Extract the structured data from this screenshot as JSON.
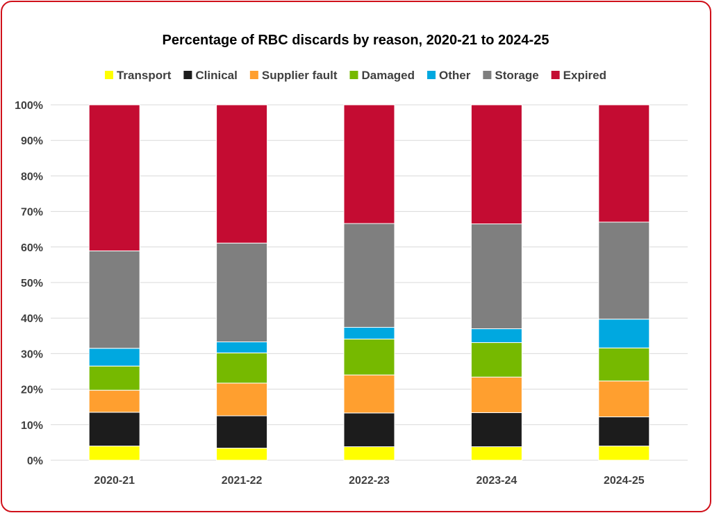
{
  "chart_data": {
    "type": "bar",
    "stacked": true,
    "title": "Percentage of RBC discards by reason, 2020-21 to 2024-25",
    "xlabel": "",
    "ylabel": "",
    "ylim": [
      0,
      100
    ],
    "y_ticks": [
      "0%",
      "10%",
      "20%",
      "30%",
      "40%",
      "50%",
      "60%",
      "70%",
      "80%",
      "90%",
      "100%"
    ],
    "categories": [
      "2020-21",
      "2021-22",
      "2022-23",
      "2023-24",
      "2024-25"
    ],
    "legend_position": "top",
    "grid": true,
    "series": [
      {
        "name": "Transport",
        "color": "#ffff00",
        "values": [
          4.0,
          3.4,
          3.8,
          3.8,
          4.0
        ]
      },
      {
        "name": "Clinical",
        "color": "#1c1c1c",
        "values": [
          9.5,
          9.1,
          9.5,
          9.6,
          8.2
        ]
      },
      {
        "name": "Supplier fault",
        "color": "#ff9f2f",
        "values": [
          6.2,
          9.2,
          10.7,
          10.0,
          10.1
        ]
      },
      {
        "name": "Damaged",
        "color": "#76b900",
        "values": [
          6.8,
          8.5,
          10.1,
          9.7,
          9.3
        ]
      },
      {
        "name": "Other",
        "color": "#00a8e0",
        "values": [
          5.0,
          3.1,
          3.3,
          3.9,
          8.1
        ]
      },
      {
        "name": "Storage",
        "color": "#7f7f7f",
        "values": [
          27.4,
          27.8,
          29.2,
          29.5,
          27.3
        ]
      },
      {
        "name": "Expired",
        "color": "#c40c32",
        "values": [
          41.1,
          38.9,
          33.4,
          33.5,
          33.0
        ]
      }
    ]
  }
}
